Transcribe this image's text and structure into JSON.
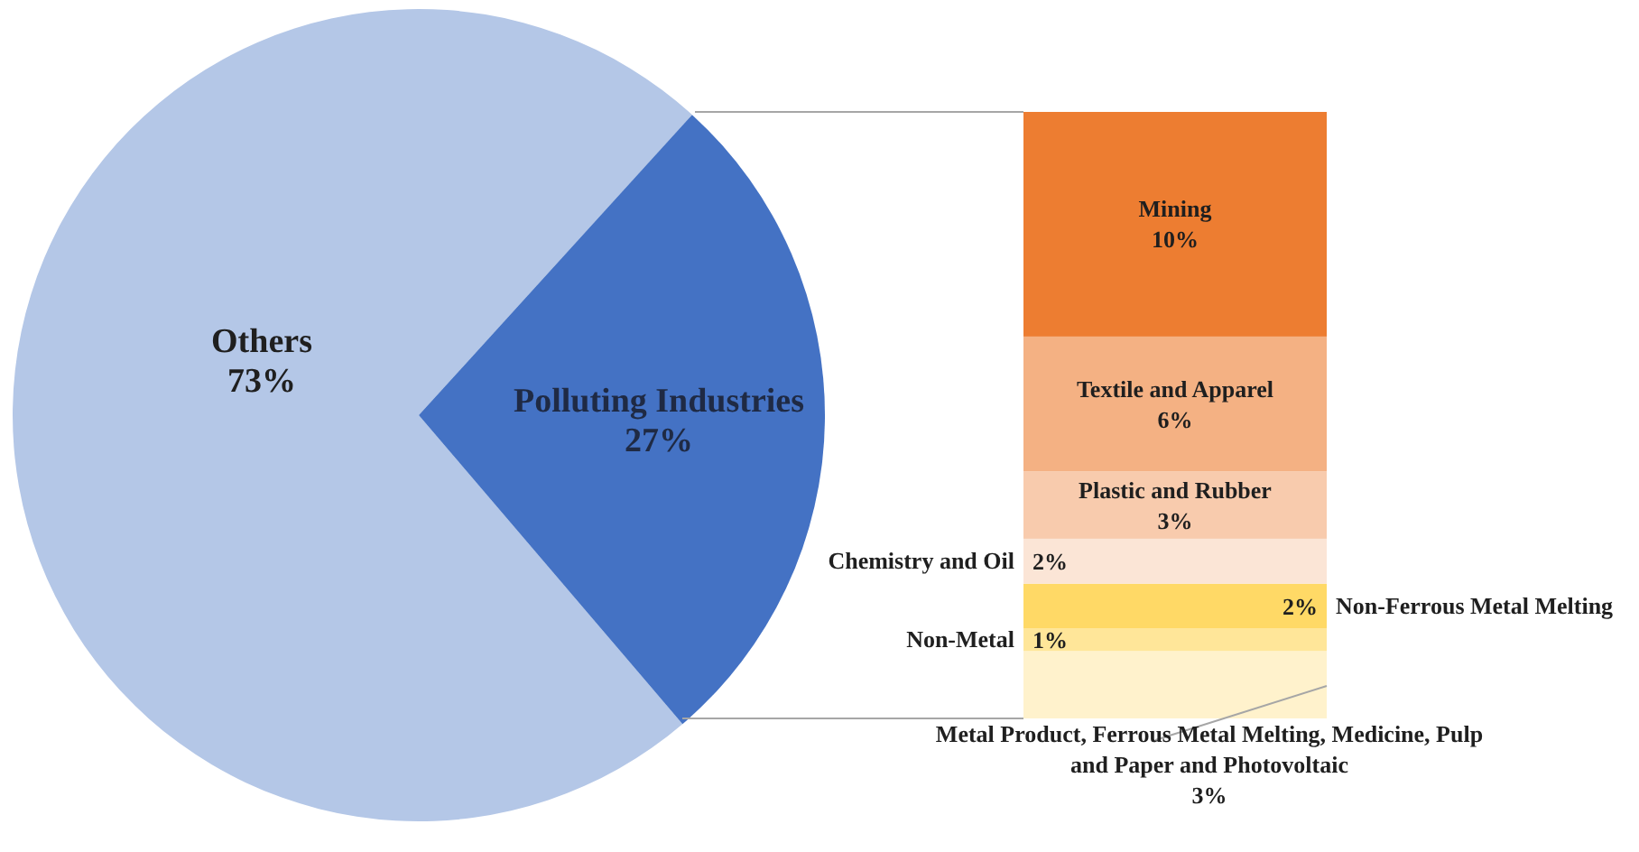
{
  "chart_data": [
    {
      "type": "pie",
      "categories": [
        "Others",
        "Polluting Industries"
      ],
      "values": [
        73,
        27
      ],
      "colors": [
        "#b4c7e7",
        "#4472c4"
      ],
      "value_labels": [
        "73%",
        "27%"
      ]
    },
    {
      "type": "bar",
      "stacked": true,
      "categories": [
        null
      ],
      "series": [
        {
          "name": "Metal Product, Ferrous Metal Melting, Medicine, Pulp and Paper and Photovoltaic",
          "color": "#fff2cc",
          "values": [
            3
          ],
          "value_labels": [
            "3%"
          ]
        },
        {
          "name": "Non-Metal",
          "color": "#ffe699",
          "values": [
            1
          ],
          "value_labels": [
            "1%"
          ]
        },
        {
          "name": "Non-Ferrous Metal Melting",
          "color": "#ffd966",
          "values": [
            2
          ],
          "value_labels": [
            "2%"
          ]
        },
        {
          "name": "Chemistry and Oil",
          "color": "#fbe5d6",
          "values": [
            2
          ],
          "value_labels": [
            "2%"
          ]
        },
        {
          "name": "Plastic and Rubber",
          "color": "#f8cbad",
          "values": [
            3
          ],
          "value_labels": [
            "3%"
          ]
        },
        {
          "name": "Textile and Apparel",
          "color": "#f4b183",
          "values": [
            6
          ],
          "value_labels": [
            "6%"
          ]
        },
        {
          "name": "Mining",
          "color": "#ed7d31",
          "values": [
            10
          ],
          "value_labels": [
            "10%"
          ]
        }
      ]
    }
  ]
}
